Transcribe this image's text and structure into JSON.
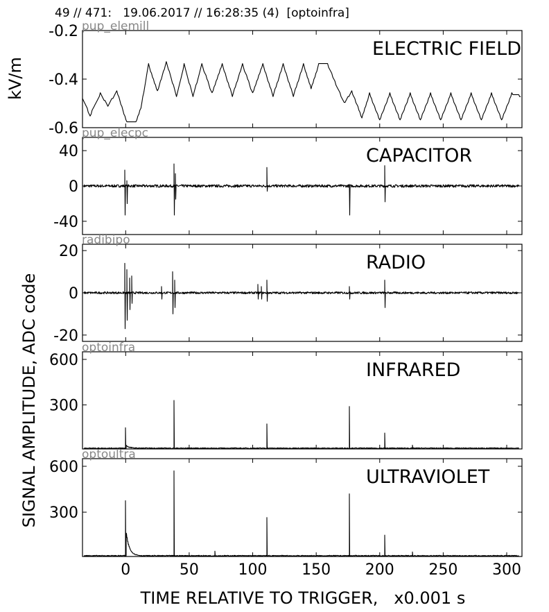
{
  "header": "49 // 471:   19.06.2017 // 16:28:35 (4)  [optoinfra]",
  "chart_data": {
    "type": "line",
    "xlabel": "TIME RELATIVE TO TRIGGER,   x0.001 s",
    "ylabel_top": "kV/m",
    "ylabel_bottom": "SIGNAL AMPLITUDE,  ADC code",
    "x_range": [
      -34,
      312
    ],
    "x_ticks": [
      0,
      50,
      100,
      150,
      200,
      250,
      300
    ],
    "panels": [
      {
        "title": "ELECTRIC FIELD",
        "source": "pup_elemill",
        "ylim": [
          -0.6,
          -0.2
        ],
        "yticks": [
          -0.6,
          -0.4,
          -0.2
        ],
        "ytick_labels": [
          "-0.6",
          "-0.4",
          "-0.2"
        ],
        "kind": "field",
        "levels": [
          [
            -34,
            -0.48
          ],
          [
            -28,
            -0.55
          ],
          [
            -20,
            -0.46
          ],
          [
            -14,
            -0.51
          ],
          [
            -7,
            -0.45
          ],
          [
            1,
            -0.58
          ],
          [
            8,
            -0.58
          ],
          [
            12,
            -0.52
          ],
          [
            18,
            -0.34
          ],
          [
            25,
            -0.45
          ],
          [
            32,
            -0.33
          ],
          [
            40,
            -0.47
          ],
          [
            46,
            -0.34
          ],
          [
            53,
            -0.47
          ],
          [
            60,
            -0.34
          ],
          [
            68,
            -0.46
          ],
          [
            76,
            -0.34
          ],
          [
            84,
            -0.47
          ],
          [
            92,
            -0.34
          ],
          [
            100,
            -0.46
          ],
          [
            108,
            -0.34
          ],
          [
            116,
            -0.47
          ],
          [
            124,
            -0.34
          ],
          [
            132,
            -0.47
          ],
          [
            140,
            -0.34
          ],
          [
            146,
            -0.44
          ],
          [
            152,
            -0.34
          ],
          [
            159,
            -0.34
          ],
          [
            172,
            -0.5
          ],
          [
            178,
            -0.45
          ],
          [
            186,
            -0.56
          ],
          [
            192,
            -0.46
          ],
          [
            200,
            -0.57
          ],
          [
            208,
            -0.46
          ],
          [
            216,
            -0.57
          ],
          [
            224,
            -0.46
          ],
          [
            232,
            -0.57
          ],
          [
            240,
            -0.46
          ],
          [
            248,
            -0.57
          ],
          [
            256,
            -0.46
          ],
          [
            264,
            -0.57
          ],
          [
            272,
            -0.46
          ],
          [
            280,
            -0.57
          ],
          [
            288,
            -0.46
          ],
          [
            296,
            -0.57
          ],
          [
            304,
            -0.46
          ],
          [
            311,
            -0.47
          ]
        ]
      },
      {
        "title": "CAPACITOR",
        "source": "pup_elecpc",
        "ylim": [
          -55,
          55
        ],
        "yticks": [
          -40,
          0,
          40
        ],
        "ytick_labels": [
          "-40",
          "0",
          "40"
        ],
        "kind": "signal",
        "baseline": 0,
        "noise": 1.5,
        "spikes": [
          {
            "x": -0.5,
            "min": -33,
            "max": 18
          },
          {
            "x": 1,
            "min": -20,
            "max": 6
          },
          {
            "x": 38,
            "min": -33,
            "max": 25
          },
          {
            "x": 39,
            "min": -15,
            "max": 14
          },
          {
            "x": 111,
            "min": -6,
            "max": 21
          },
          {
            "x": 176,
            "min": -33,
            "max": 2
          },
          {
            "x": 204,
            "min": -18,
            "max": 23
          }
        ]
      },
      {
        "title": "RADIO",
        "source": "radibipo",
        "ylim": [
          -23,
          23
        ],
        "yticks": [
          -20,
          0,
          20
        ],
        "ytick_labels": [
          "-20",
          "0",
          "20"
        ],
        "kind": "signal",
        "baseline": 0,
        "noise": 0.5,
        "spikes": [
          {
            "x": -0.5,
            "min": -17,
            "max": 14
          },
          {
            "x": 1,
            "min": -13,
            "max": 11
          },
          {
            "x": 3,
            "min": -8,
            "max": 7
          },
          {
            "x": 5,
            "min": -5,
            "max": 8
          },
          {
            "x": 28,
            "min": -3,
            "max": 3
          },
          {
            "x": 37,
            "min": -10,
            "max": 10
          },
          {
            "x": 38.5,
            "min": -7,
            "max": 6
          },
          {
            "x": 104,
            "min": -3,
            "max": 4
          },
          {
            "x": 107,
            "min": -3,
            "max": 3
          },
          {
            "x": 111,
            "min": -4,
            "max": 6
          },
          {
            "x": 176,
            "min": -3,
            "max": 3
          },
          {
            "x": 204,
            "min": -7,
            "max": 6
          }
        ]
      },
      {
        "title": "INFRARED",
        "source": "optoinfra",
        "ylim": [
          10,
          650
        ],
        "yticks": [
          300,
          600
        ],
        "ytick_labels": [
          "300",
          "600"
        ],
        "kind": "pulse",
        "baseline": 15,
        "noise": 3,
        "spikes": [
          {
            "x": 0,
            "max": 150,
            "tail": 20
          },
          {
            "x": 38,
            "max": 330,
            "tail": 0
          },
          {
            "x": 111,
            "max": 175,
            "tail": 0
          },
          {
            "x": 176,
            "max": 290,
            "tail": 0
          },
          {
            "x": 204,
            "max": 115,
            "tail": 0
          },
          {
            "x": 226,
            "max": 35,
            "tail": 0
          }
        ]
      },
      {
        "title": "ULTRAVIOLET",
        "source": "optoultra",
        "ylim": [
          10,
          650
        ],
        "yticks": [
          300,
          600
        ],
        "ytick_labels": [
          "300",
          "600"
        ],
        "kind": "pulse",
        "baseline": 15,
        "noise": 3,
        "spikes": [
          {
            "x": 0,
            "max": 375,
            "tail": 170
          },
          {
            "x": 38,
            "max": 570,
            "tail": 0
          },
          {
            "x": 70,
            "max": 45,
            "tail": 0
          },
          {
            "x": 111,
            "max": 265,
            "tail": 0
          },
          {
            "x": 176,
            "max": 420,
            "tail": 0
          },
          {
            "x": 204,
            "max": 150,
            "tail": 0
          },
          {
            "x": 226,
            "max": 40,
            "tail": 0
          }
        ]
      }
    ]
  }
}
